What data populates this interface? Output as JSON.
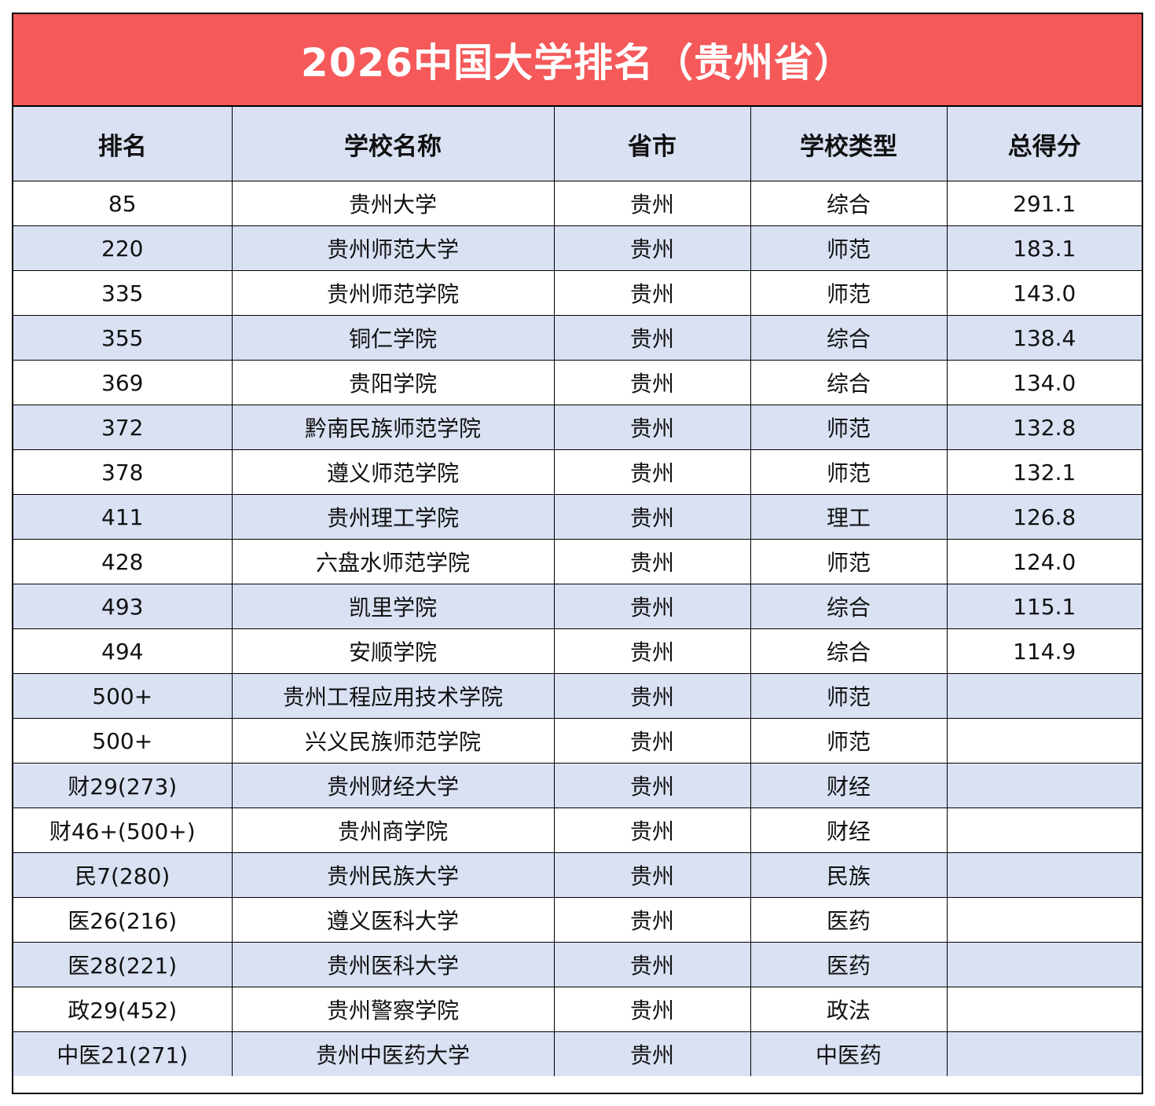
{
  "title": "2026中国大学排名（贵州省）",
  "table": {
    "headers": [
      "排名",
      "学校名称",
      "省市",
      "学校类型",
      "总得分"
    ],
    "rows": [
      [
        "85",
        "贵州大学",
        "贵州",
        "综合",
        "291.1"
      ],
      [
        "220",
        "贵州师范大学",
        "贵州",
        "师范",
        "183.1"
      ],
      [
        "335",
        "贵州师范学院",
        "贵州",
        "师范",
        "143.0"
      ],
      [
        "355",
        "铜仁学院",
        "贵州",
        "综合",
        "138.4"
      ],
      [
        "369",
        "贵阳学院",
        "贵州",
        "综合",
        "134.0"
      ],
      [
        "372",
        "黔南民族师范学院",
        "贵州",
        "师范",
        "132.8"
      ],
      [
        "378",
        "遵义师范学院",
        "贵州",
        "师范",
        "132.1"
      ],
      [
        "411",
        "贵州理工学院",
        "贵州",
        "理工",
        "126.8"
      ],
      [
        "428",
        "六盘水师范学院",
        "贵州",
        "师范",
        "124.0"
      ],
      [
        "493",
        "凯里学院",
        "贵州",
        "综合",
        "115.1"
      ],
      [
        "494",
        "安顺学院",
        "贵州",
        "综合",
        "114.9"
      ],
      [
        "500+",
        "贵州工程应用技术学院",
        "贵州",
        "师范",
        ""
      ],
      [
        "500+",
        "兴义民族师范学院",
        "贵州",
        "师范",
        ""
      ],
      [
        "财29(273)",
        "贵州财经大学",
        "贵州",
        "财经",
        ""
      ],
      [
        "财46+(500+)",
        "贵州商学院",
        "贵州",
        "财经",
        ""
      ],
      [
        "民7(280)",
        "贵州民族大学",
        "贵州",
        "民族",
        ""
      ],
      [
        "医26(216)",
        "遵义医科大学",
        "贵州",
        "医药",
        ""
      ],
      [
        "医28(221)",
        "贵州医科大学",
        "贵州",
        "医药",
        ""
      ],
      [
        "政29(452)",
        "贵州警察学院",
        "贵州",
        "政法",
        ""
      ],
      [
        "中医21(271)",
        "贵州中医药大学",
        "贵州",
        "中医药",
        ""
      ]
    ]
  },
  "colors": {
    "title_background": "#f5595a",
    "title_text": "#ffffff",
    "band_background": "#d9e1f3",
    "border": "#000000"
  }
}
